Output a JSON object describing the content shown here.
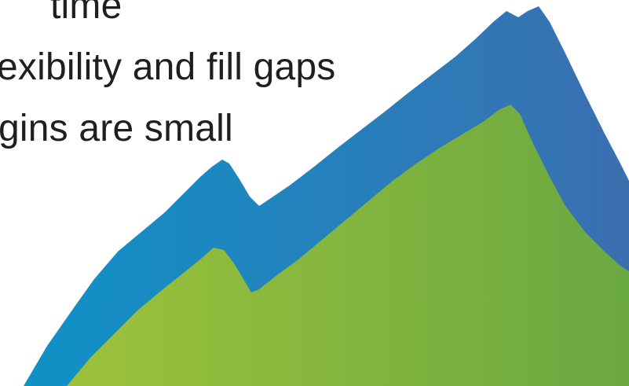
{
  "slide": {
    "text_lines": [
      "time",
      "exibility and fill gaps",
      "gins are small"
    ]
  },
  "graphic": {
    "back_mountain_colors": [
      "#0f92c7",
      "#3b6fb0"
    ],
    "front_mountain_colors": [
      "#9cc23a",
      "#6aa842"
    ]
  }
}
